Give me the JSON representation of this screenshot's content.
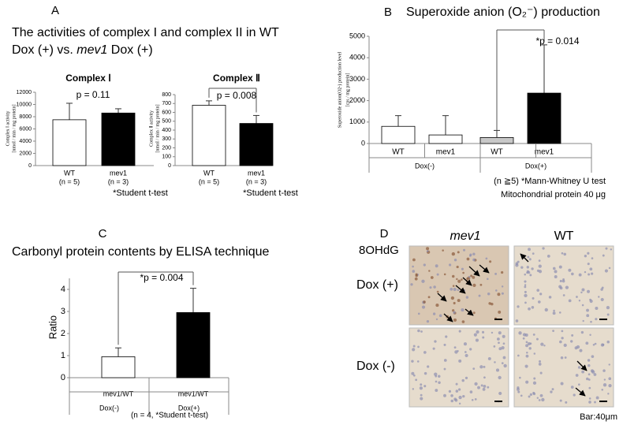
{
  "chart_data": [
    {
      "type": "bar",
      "panel": "A",
      "heading": [
        "The activities of complex I and complex II in WT",
        [
          "Dox (+) vs. ",
          "mev1",
          " Dox (+)"
        ]
      ],
      "title": "Complex Ⅰ",
      "ylabel": [
        "Complex Ⅰ activity",
        "[nmol / min / mg protein]"
      ],
      "categories": [
        "WT",
        "mev1"
      ],
      "sample_sizes": [
        "(n = 5)",
        "(n = 3)"
      ],
      "values": [
        7500,
        8600
      ],
      "errors": [
        2700,
        700
      ],
      "colors": [
        "#ffffff",
        "#000000"
      ],
      "ylim": [
        0,
        12000
      ],
      "yticks": [
        0,
        2000,
        4000,
        6000,
        8000,
        10000,
        12000
      ],
      "annotation": "p = 0.11",
      "note": "*Student  t-test"
    },
    {
      "type": "bar",
      "title": "Complex Ⅱ",
      "ylabel": [
        "Complex Ⅱ activity",
        "[nmol / min / mg protein]"
      ],
      "categories": [
        "WT",
        "mev1"
      ],
      "sample_sizes": [
        "(n = 5)",
        "(n = 3)"
      ],
      "values": [
        680,
        475
      ],
      "errors": [
        50,
        90
      ],
      "colors": [
        "#ffffff",
        "#000000"
      ],
      "ylim": [
        0,
        800
      ],
      "yticks": [
        0,
        100,
        200,
        300,
        400,
        500,
        600,
        700,
        800
      ],
      "annotation": "p = 0.008",
      "note": "*Student  t-test"
    },
    {
      "type": "bar",
      "panel": "B",
      "title": "Superoxide anion (O₂⁻) production",
      "ylabel": [
        "Superoxide anion(O2-) production level",
        "[cps / mg protein]"
      ],
      "categories": [
        "WT",
        "mev1",
        "WT",
        "mev1"
      ],
      "groups": [
        "Dox(-)",
        "Dox(+)"
      ],
      "values": [
        800,
        400,
        280,
        2350
      ],
      "errors": [
        500,
        900,
        330,
        2250
      ],
      "colors": [
        "#ffffff",
        "#ffffff",
        "#c8c8c8",
        "#000000"
      ],
      "ylim": [
        0,
        5000
      ],
      "yticks": [
        0,
        1000,
        2000,
        3000,
        4000,
        5000
      ],
      "annotation": "*p = 0.014",
      "notes": [
        "(n ≧5)  *Mann-Whitney U test",
        "Mitochondrial protein 40 μg"
      ]
    },
    {
      "type": "bar",
      "panel": "C",
      "title": "Carbonyl protein contents by ELISA technique",
      "ylabel": [
        "Ratio"
      ],
      "categories": [
        "mev1/WT",
        "mev1/WT"
      ],
      "groups": [
        "Dox(-)",
        "Dox(+)"
      ],
      "values": [
        0.95,
        2.95
      ],
      "errors": [
        0.4,
        1.1
      ],
      "colors": [
        "#ffffff",
        "#000000"
      ],
      "ylim": [
        0,
        4.5
      ],
      "yticks": [
        0,
        1,
        2,
        3,
        4
      ],
      "annotation": "*p = 0.004",
      "note": "(n = 4,   *Student t-test)"
    }
  ],
  "micrographs": {
    "panel": "D",
    "marker": "8OHdG",
    "columns": [
      "mev1",
      "WT"
    ],
    "rows": [
      "Dox (+)",
      "Dox (-)"
    ],
    "scale_bar": "Bar:40μm"
  }
}
